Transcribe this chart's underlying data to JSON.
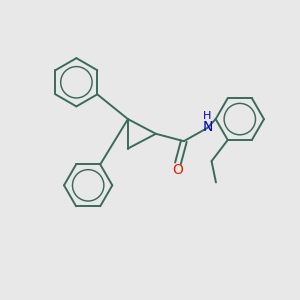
{
  "bg_color": "#e8e8e8",
  "bond_color": "#3a6b5a",
  "bond_width": 1.4,
  "O_color": "#dd2200",
  "N_color": "#0000cc",
  "figsize": [
    3.0,
    3.0
  ],
  "dpi": 100,
  "xlim": [
    0,
    10
  ],
  "ylim": [
    0,
    10
  ]
}
